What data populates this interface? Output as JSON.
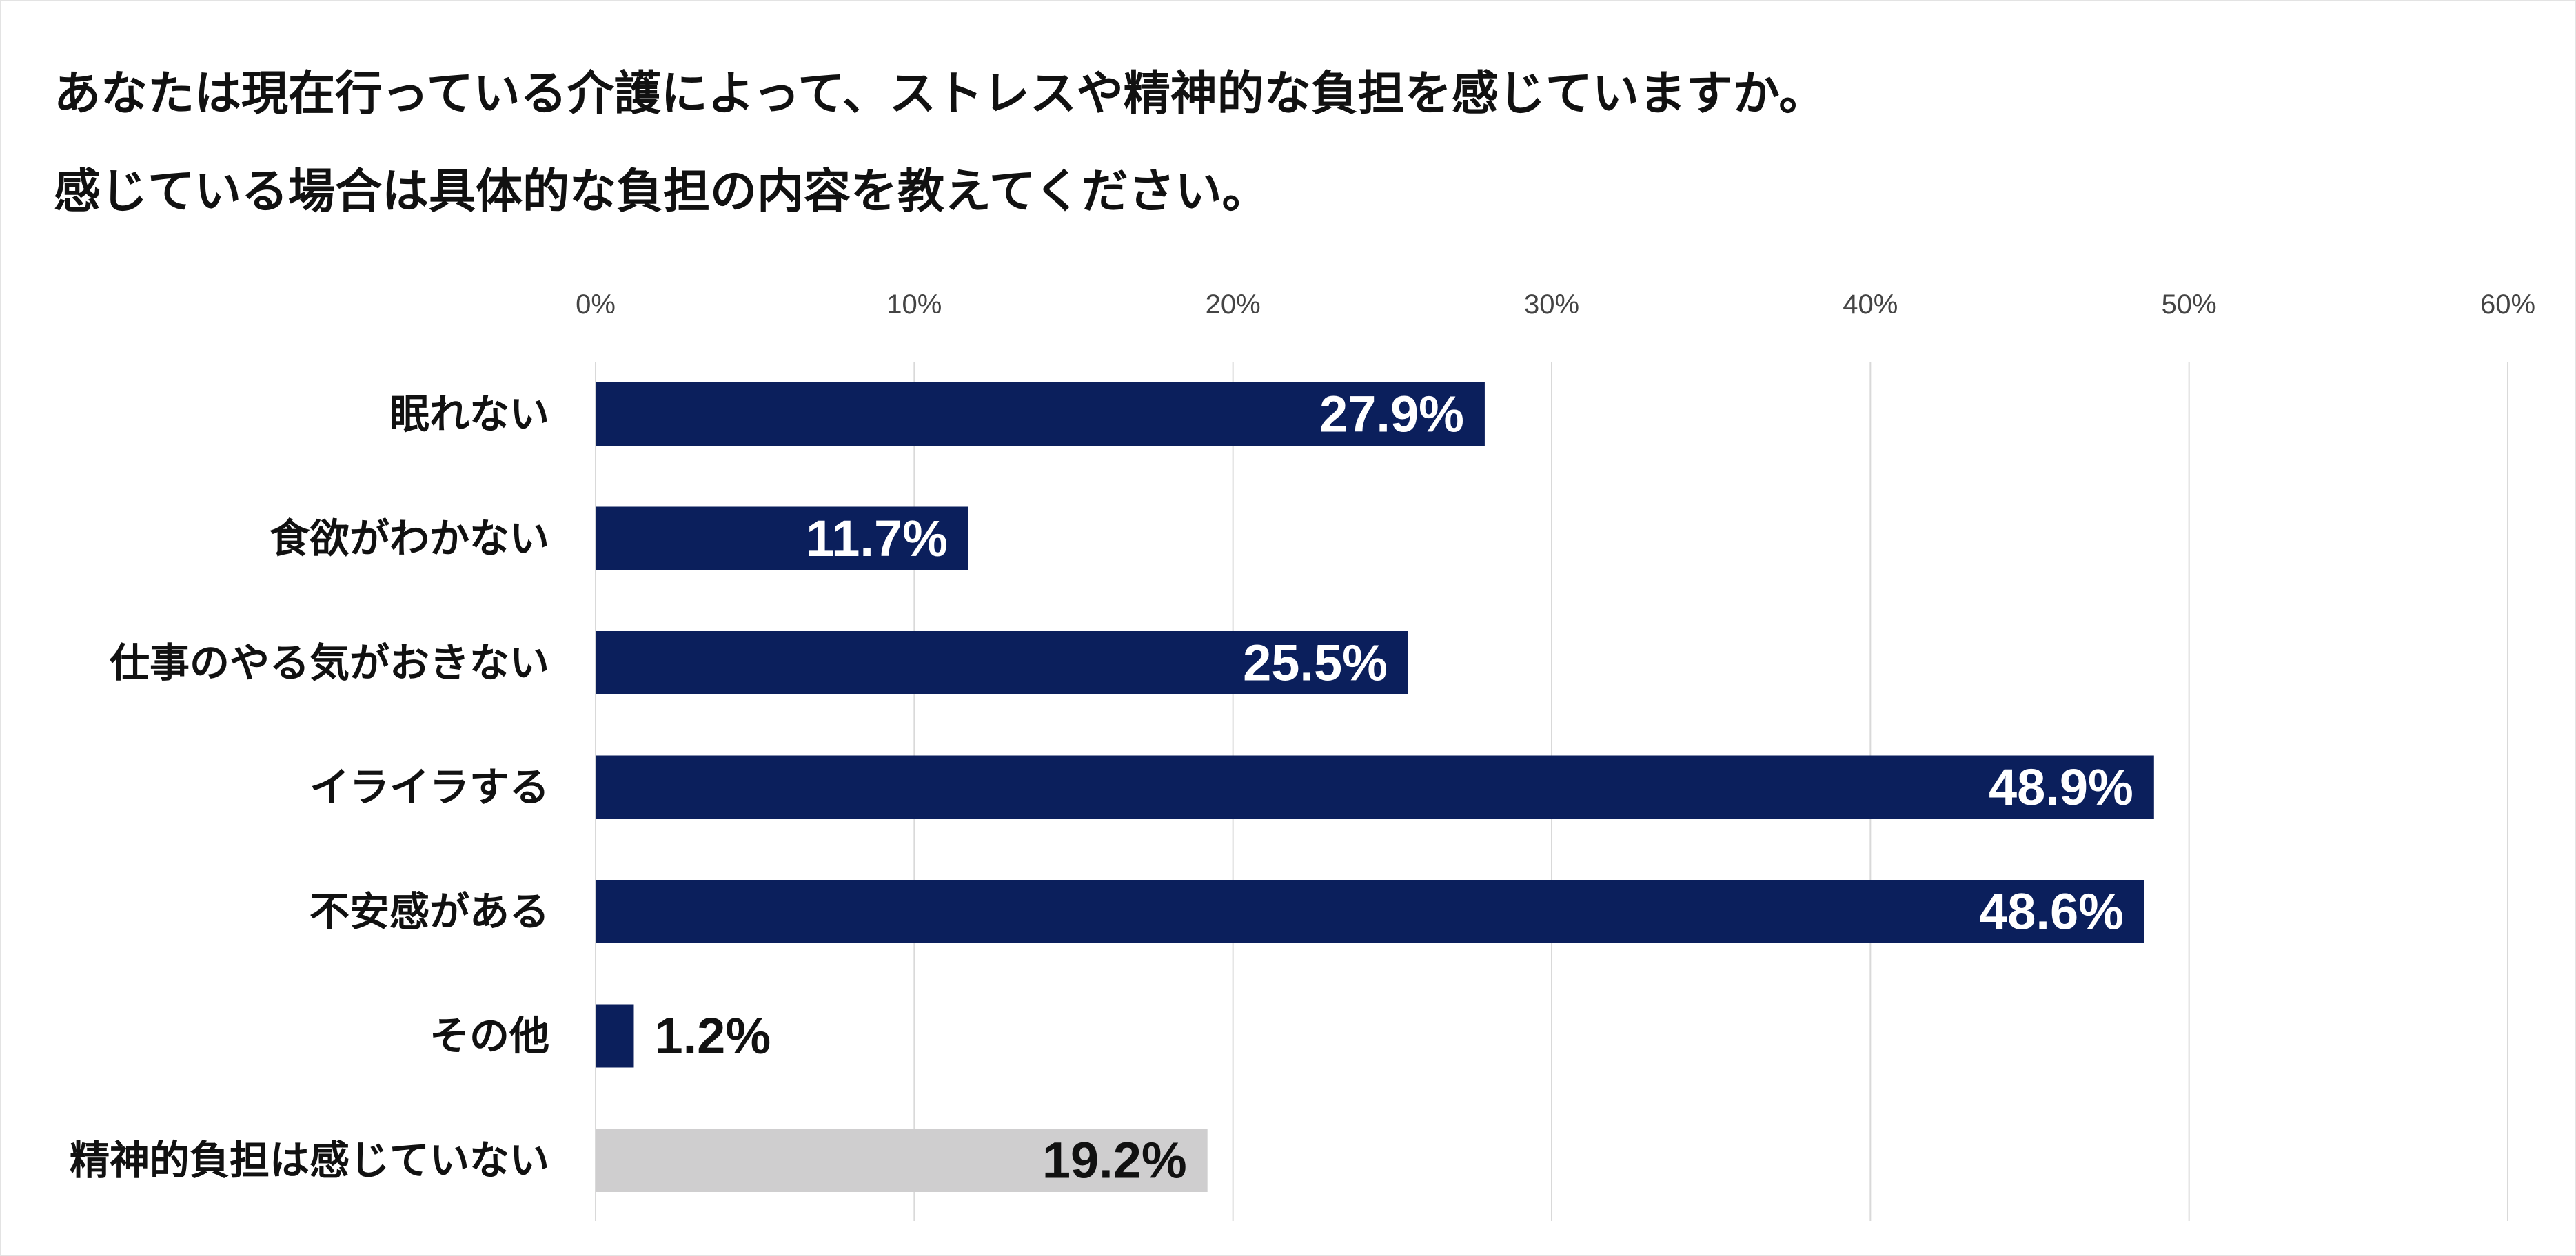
{
  "title_lines": [
    "あなたは現在行っている介護によって、ストレスや精神的な負担を感じていますか。",
    "感じている場合は具体的な負担の内容を教えてください。"
  ],
  "colors": {
    "primary_bar": "#0b1f5c",
    "secondary_bar": "#cfcecf",
    "gridline": "#d9d9d9",
    "label_inside": "#ffffff",
    "label_outside": "#111111"
  },
  "chart_data": {
    "type": "bar",
    "orientation": "horizontal",
    "title": "あなたは現在行っている介護によって、ストレスや精神的な負担を感じていますか。感じている場合は具体的な負担の内容を教えてください。",
    "xlabel": "",
    "ylabel": "",
    "xlim": [
      0,
      60
    ],
    "x_ticks": [
      "0%",
      "10%",
      "20%",
      "30%",
      "40%",
      "50%",
      "60%"
    ],
    "grid": true,
    "legend": "none",
    "categories": [
      "眠れない",
      "食欲がわかない",
      "仕事のやる気がおきない",
      "イライラする",
      "不安感がある",
      "その他",
      "精神的負担は感じていない"
    ],
    "values": [
      27.9,
      11.7,
      25.5,
      48.9,
      48.6,
      1.2,
      19.2
    ],
    "value_labels": [
      "27.9%",
      "11.7%",
      "25.5%",
      "48.9%",
      "48.6%",
      "1.2%",
      "19.2%"
    ],
    "bar_styles": [
      "primary",
      "primary",
      "primary",
      "primary",
      "primary",
      "primary",
      "secondary"
    ]
  }
}
